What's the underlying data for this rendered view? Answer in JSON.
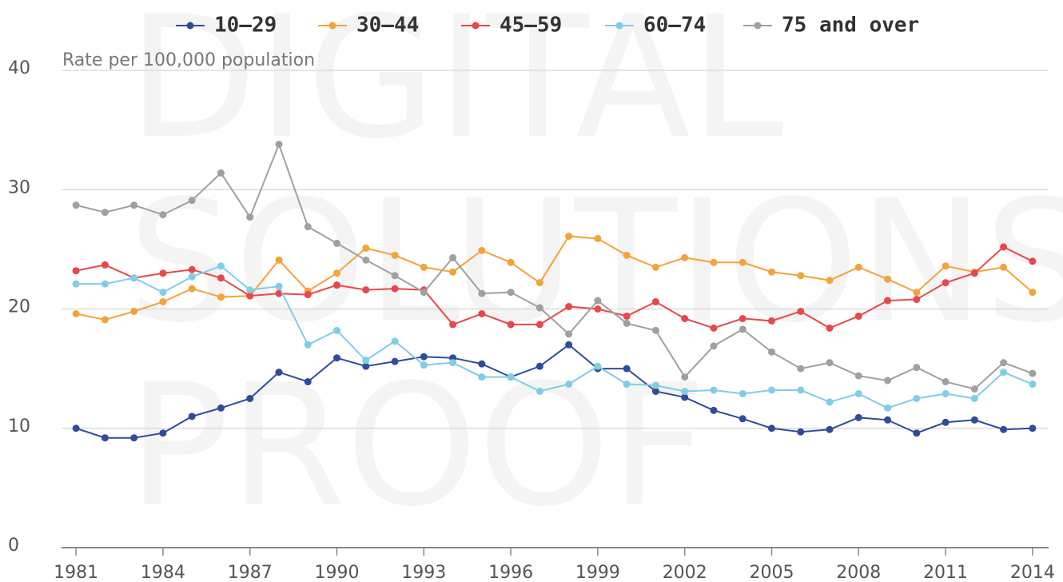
{
  "chart_data": {
    "type": "line",
    "watermark": [
      "DIGITAL",
      "SOLUTIONS",
      "PROOF"
    ],
    "y_label": "Rate per 100,000 population",
    "x": [
      1981,
      1982,
      1983,
      1984,
      1985,
      1986,
      1987,
      1988,
      1989,
      1990,
      1991,
      1992,
      1993,
      1994,
      1995,
      1996,
      1997,
      1998,
      1999,
      2000,
      2001,
      2002,
      2003,
      2004,
      2005,
      2006,
      2007,
      2008,
      2009,
      2010,
      2011,
      2012,
      2013,
      2014
    ],
    "xlim": [
      1980.5,
      2014.5
    ],
    "xticks": [
      1981,
      1984,
      1987,
      1990,
      1993,
      1996,
      1999,
      2002,
      2005,
      2008,
      2011,
      2014
    ],
    "ylim": [
      0,
      40
    ],
    "yticks": [
      0,
      10,
      20,
      30,
      40
    ],
    "grid": true,
    "legend": "top",
    "series": [
      {
        "name": "10–29",
        "color": "#2f4b9c",
        "values": [
          10.0,
          9.2,
          9.2,
          9.6,
          11.0,
          11.7,
          12.5,
          14.7,
          13.9,
          15.9,
          15.2,
          15.6,
          16.0,
          15.9,
          15.4,
          14.3,
          15.2,
          17.0,
          15.0,
          15.0,
          13.1,
          12.6,
          11.5,
          10.8,
          10.0,
          9.7,
          9.9,
          10.9,
          10.7,
          9.6,
          10.5,
          10.7,
          9.9,
          10.0
        ]
      },
      {
        "name": "30–44",
        "color": "#f4a23a",
        "values": [
          19.6,
          19.1,
          19.8,
          20.6,
          21.7,
          21.0,
          21.1,
          24.1,
          21.5,
          23.0,
          25.1,
          24.5,
          23.5,
          23.1,
          24.9,
          23.9,
          22.2,
          26.1,
          25.9,
          24.5,
          23.5,
          24.3,
          23.9,
          23.9,
          23.1,
          22.8,
          22.4,
          23.5,
          22.5,
          21.4,
          23.6,
          23.1,
          23.5,
          21.4
        ]
      },
      {
        "name": "45–59",
        "color": "#e8474b",
        "values": [
          23.2,
          23.7,
          22.6,
          23.0,
          23.3,
          22.6,
          21.1,
          21.3,
          21.2,
          22.0,
          21.6,
          21.7,
          21.6,
          18.7,
          19.6,
          18.7,
          18.7,
          20.2,
          20.0,
          19.4,
          20.6,
          19.2,
          18.4,
          19.2,
          19.0,
          19.8,
          18.4,
          19.4,
          20.7,
          20.8,
          22.2,
          23.0,
          25.2,
          24.0
        ]
      },
      {
        "name": "60–74",
        "color": "#7fcde8",
        "values": [
          22.1,
          22.1,
          22.6,
          21.4,
          22.7,
          23.6,
          21.6,
          21.9,
          17.0,
          18.2,
          15.7,
          17.3,
          15.3,
          15.5,
          14.3,
          14.3,
          13.1,
          13.7,
          15.2,
          13.7,
          13.6,
          13.1,
          13.2,
          12.9,
          13.2,
          13.2,
          12.2,
          12.9,
          11.7,
          12.5,
          12.9,
          12.5,
          14.7,
          13.7
        ]
      },
      {
        "name": "75 and over",
        "color": "#a0a0a0",
        "values": [
          28.7,
          28.1,
          28.7,
          27.9,
          29.1,
          31.4,
          27.7,
          33.8,
          26.9,
          25.5,
          24.1,
          22.8,
          21.4,
          24.3,
          21.3,
          21.4,
          20.1,
          17.9,
          20.7,
          18.8,
          18.2,
          14.3,
          16.9,
          18.3,
          16.4,
          15.0,
          15.5,
          14.4,
          14.0,
          15.1,
          13.9,
          13.3,
          15.5,
          14.6
        ]
      }
    ]
  }
}
